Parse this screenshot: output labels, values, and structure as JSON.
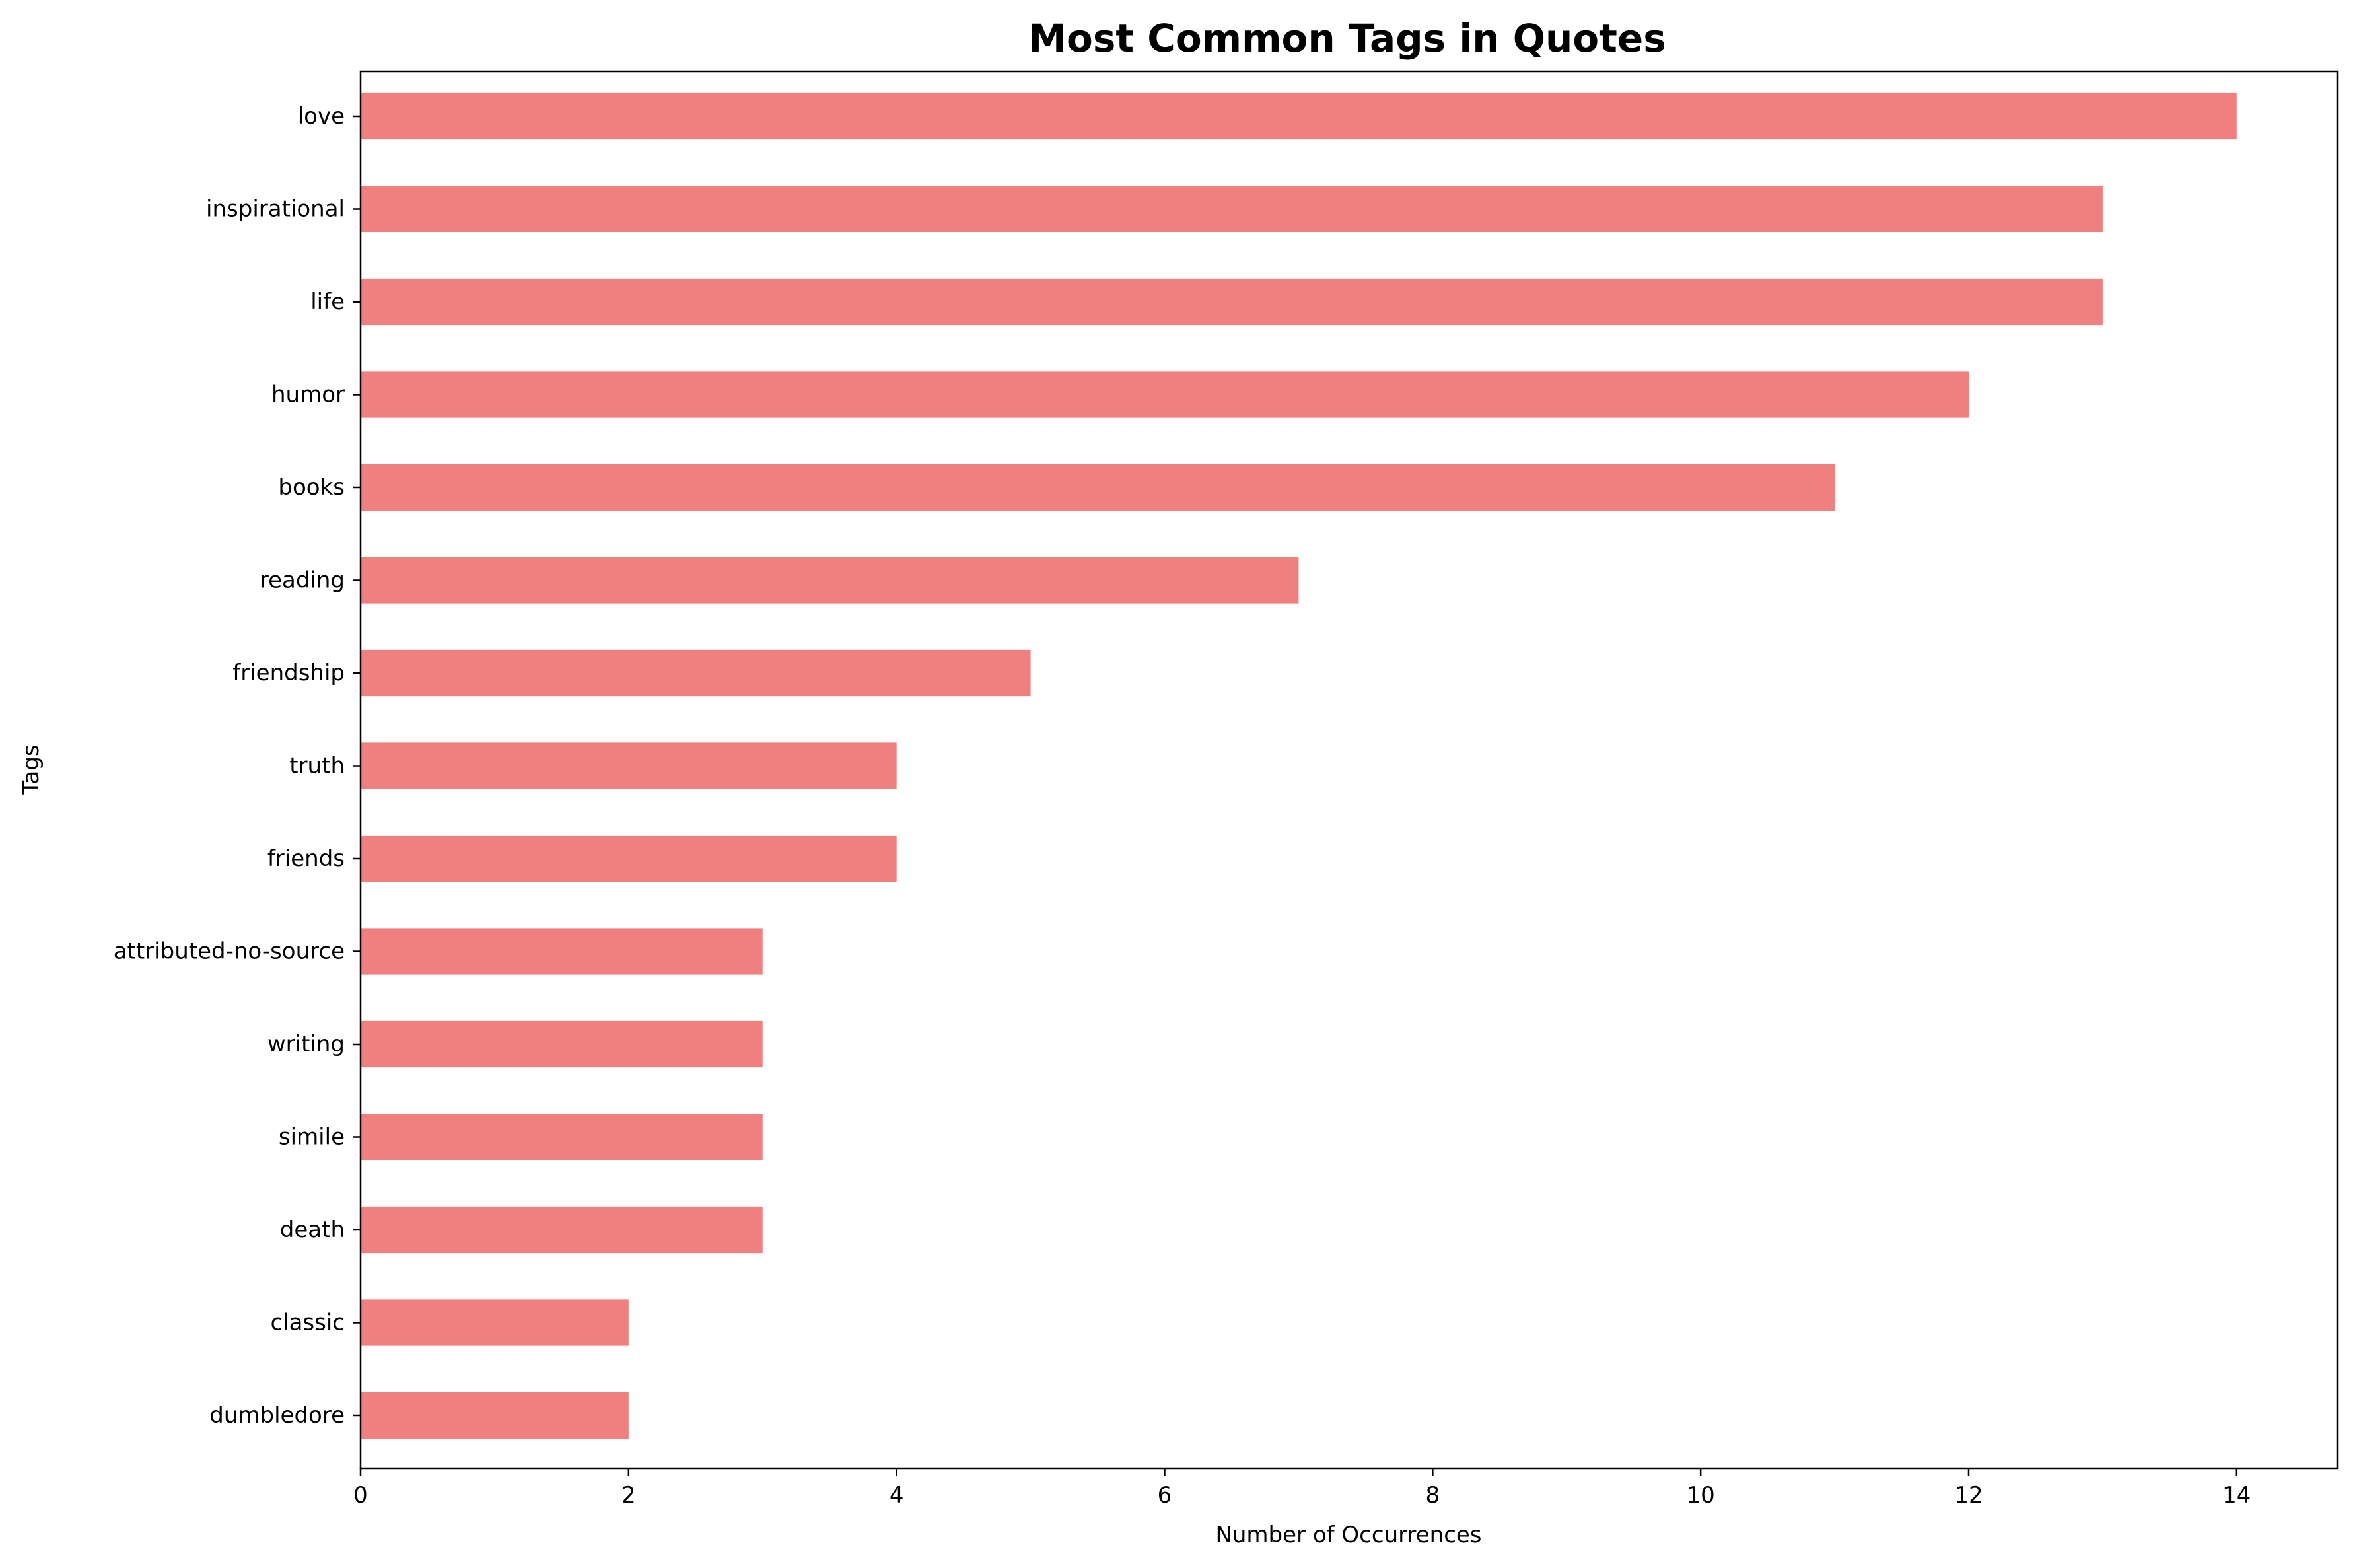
{
  "chart_data": {
    "type": "bar",
    "orientation": "horizontal",
    "title": "Most Common Tags in Quotes",
    "xlabel": "Number of Occurrences",
    "ylabel": "Tags",
    "categories": [
      "love",
      "inspirational",
      "life",
      "humor",
      "books",
      "reading",
      "friendship",
      "truth",
      "friends",
      "attributed-no-source",
      "writing",
      "simile",
      "death",
      "classic",
      "dumbledore"
    ],
    "values": [
      14,
      13,
      13,
      12,
      11,
      7,
      5,
      4,
      4,
      3,
      3,
      3,
      3,
      2,
      2
    ],
    "xlim": [
      0,
      14.75
    ],
    "xticks": [
      0,
      2,
      4,
      6,
      8,
      10,
      12,
      14
    ],
    "grid": false,
    "legend": "none",
    "bar_color": "#f08080"
  }
}
